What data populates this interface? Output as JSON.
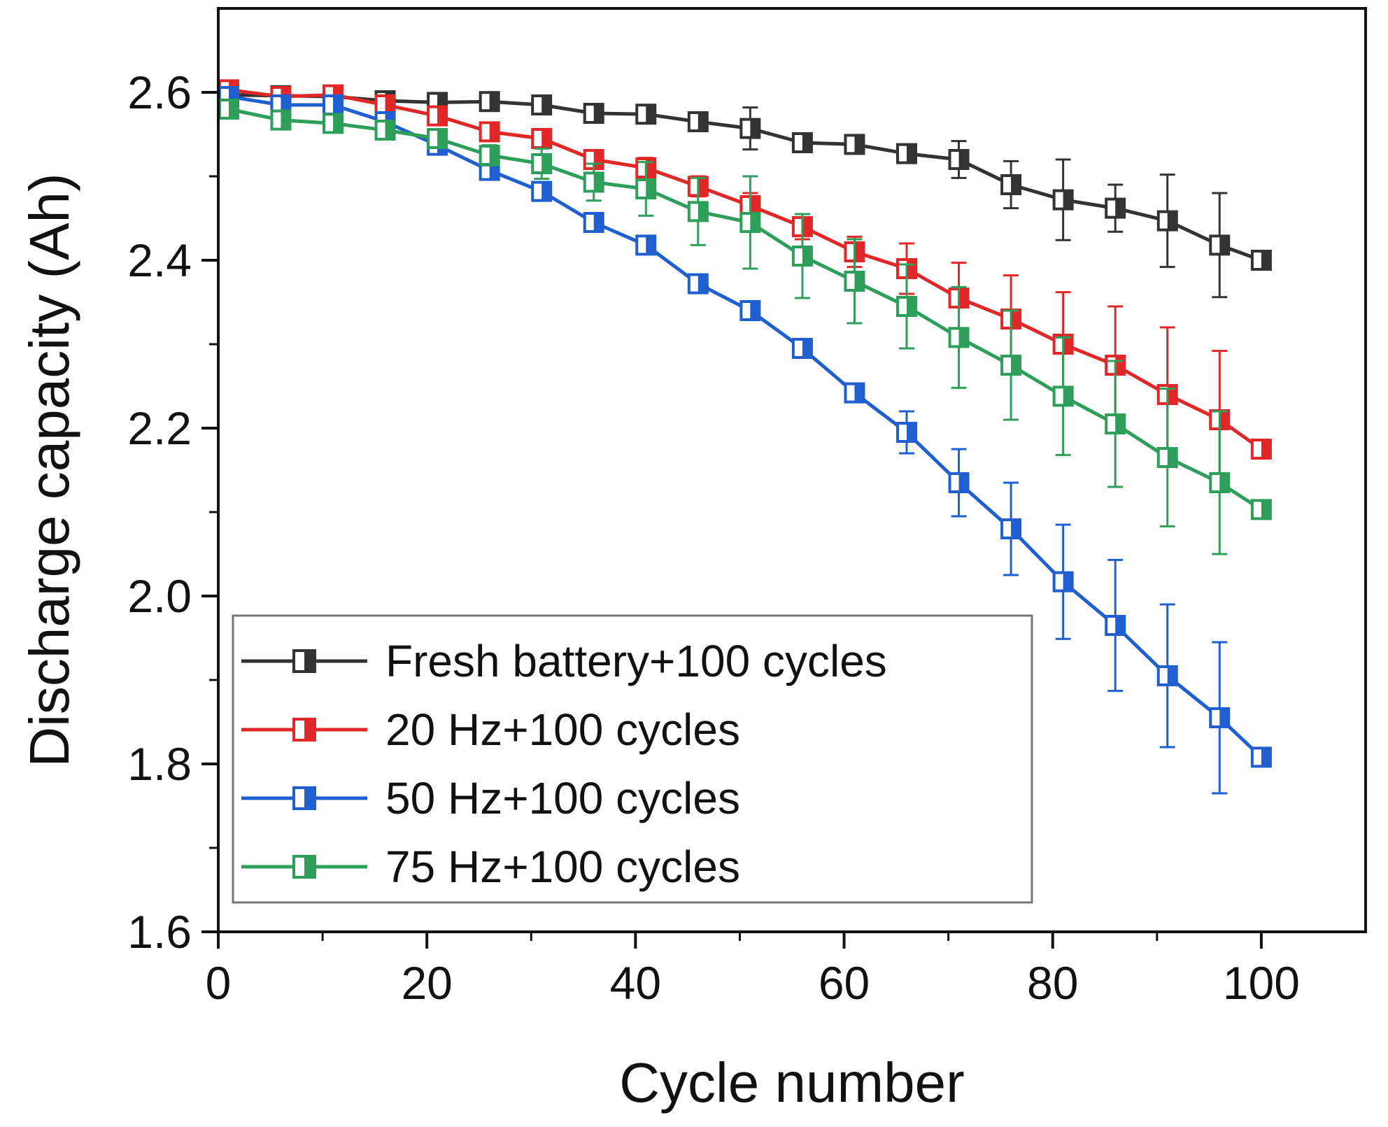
{
  "chart_data": {
    "type": "line",
    "title": "",
    "xlabel": "Cycle number",
    "ylabel": "Discharge capacity (Ah)",
    "xlim": [
      0,
      110
    ],
    "ylim": [
      1.6,
      2.7
    ],
    "xticks": [
      0,
      20,
      40,
      60,
      80,
      100
    ],
    "yticks": [
      1.6,
      1.8,
      2.0,
      2.2,
      2.4,
      2.6
    ],
    "grid": false,
    "legend_position": "bottom-left",
    "x": [
      1,
      6,
      11,
      16,
      21,
      26,
      31,
      36,
      41,
      46,
      51,
      56,
      61,
      66,
      71,
      76,
      81,
      86,
      91,
      96,
      100
    ],
    "series": [
      {
        "name": "Fresh battery+100 cycles",
        "color": "#333333",
        "values": [
          2.597,
          2.596,
          2.595,
          2.59,
          2.588,
          2.589,
          2.585,
          2.575,
          2.574,
          2.565,
          2.557,
          2.54,
          2.538,
          2.527,
          2.52,
          2.49,
          2.472,
          2.462,
          2.447,
          2.418,
          2.4
        ],
        "errors": [
          0.004,
          0.004,
          0.004,
          0.004,
          0.004,
          0.004,
          0.004,
          0.005,
          0.006,
          0.008,
          0.025,
          0.01,
          0.005,
          0.006,
          0.022,
          0.028,
          0.048,
          0.028,
          0.055,
          0.062,
          0.005
        ]
      },
      {
        "name": "20 Hz+100 cycles",
        "color": "#e02828",
        "values": [
          2.603,
          2.595,
          2.597,
          2.585,
          2.572,
          2.553,
          2.545,
          2.52,
          2.51,
          2.488,
          2.465,
          2.44,
          2.41,
          2.39,
          2.355,
          2.33,
          2.3,
          2.275,
          2.24,
          2.21,
          2.175
        ],
        "errors": [
          0.004,
          0.004,
          0.004,
          0.006,
          0.006,
          0.008,
          0.008,
          0.01,
          0.012,
          0.012,
          0.015,
          0.015,
          0.018,
          0.03,
          0.042,
          0.052,
          0.062,
          0.07,
          0.08,
          0.082,
          0.005
        ]
      },
      {
        "name": "50 Hz+100 cycles",
        "color": "#1f5fcf",
        "values": [
          2.595,
          2.585,
          2.585,
          2.565,
          2.537,
          2.507,
          2.482,
          2.445,
          2.418,
          2.372,
          2.34,
          2.295,
          2.242,
          2.195,
          2.135,
          2.08,
          2.017,
          1.965,
          1.905,
          1.855,
          1.808
        ],
        "errors": [
          0.004,
          0.004,
          0.004,
          0.004,
          0.006,
          0.006,
          0.008,
          0.008,
          0.008,
          0.008,
          0.008,
          0.008,
          0.01,
          0.025,
          0.04,
          0.055,
          0.068,
          0.078,
          0.085,
          0.09,
          0.005
        ]
      },
      {
        "name": "75 Hz+100 cycles",
        "color": "#2e9e5b",
        "values": [
          2.58,
          2.567,
          2.563,
          2.555,
          2.545,
          2.525,
          2.515,
          2.493,
          2.485,
          2.458,
          2.445,
          2.405,
          2.375,
          2.345,
          2.308,
          2.275,
          2.238,
          2.205,
          2.165,
          2.135,
          2.103
        ],
        "errors": [
          0.004,
          0.004,
          0.004,
          0.006,
          0.01,
          0.012,
          0.018,
          0.022,
          0.032,
          0.04,
          0.055,
          0.05,
          0.05,
          0.05,
          0.06,
          0.065,
          0.07,
          0.075,
          0.082,
          0.085,
          0.005
        ]
      }
    ]
  }
}
